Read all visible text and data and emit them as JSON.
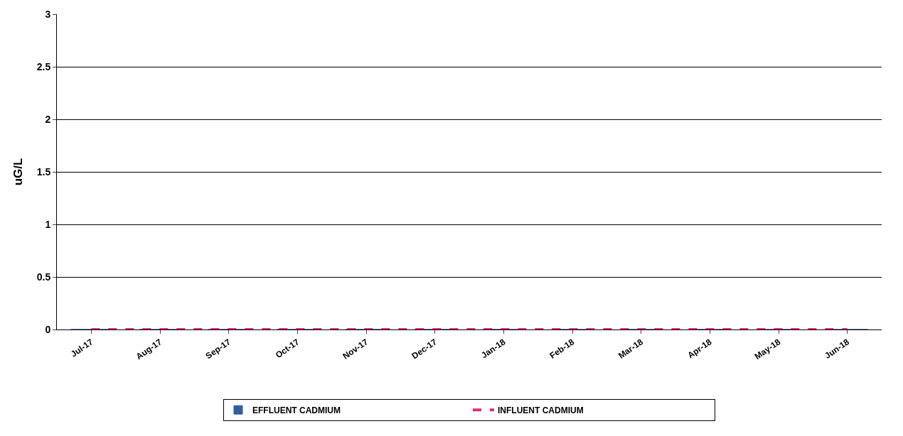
{
  "chart_data": {
    "type": "bar",
    "ylabel": "uG/L",
    "categories": [
      "Jul-17",
      "Aug-17",
      "Sep-17",
      "Oct-17",
      "Nov-17",
      "Dec-17",
      "Jan-18",
      "Feb-18",
      "Mar-18",
      "Apr-18",
      "May-18",
      "Jun-18"
    ],
    "series": [
      {
        "name": "EFFLUENT CADMIUM",
        "color": "#2e5f9e",
        "values": [
          0,
          0,
          0,
          0,
          0,
          0,
          0,
          0,
          0,
          0,
          0,
          0
        ]
      },
      {
        "name": "INFLUENT CADMIUM",
        "type": "line",
        "color": "#e8287a",
        "line_style": "dashed",
        "values": [
          0,
          0,
          0,
          0,
          0,
          0,
          0,
          0,
          0,
          0,
          0,
          0
        ]
      }
    ],
    "ylim": [
      0,
      3
    ],
    "yticks": [
      0,
      0.5,
      1,
      1.5,
      2,
      2.5,
      3
    ],
    "grid": "y",
    "legend": "bottom"
  }
}
